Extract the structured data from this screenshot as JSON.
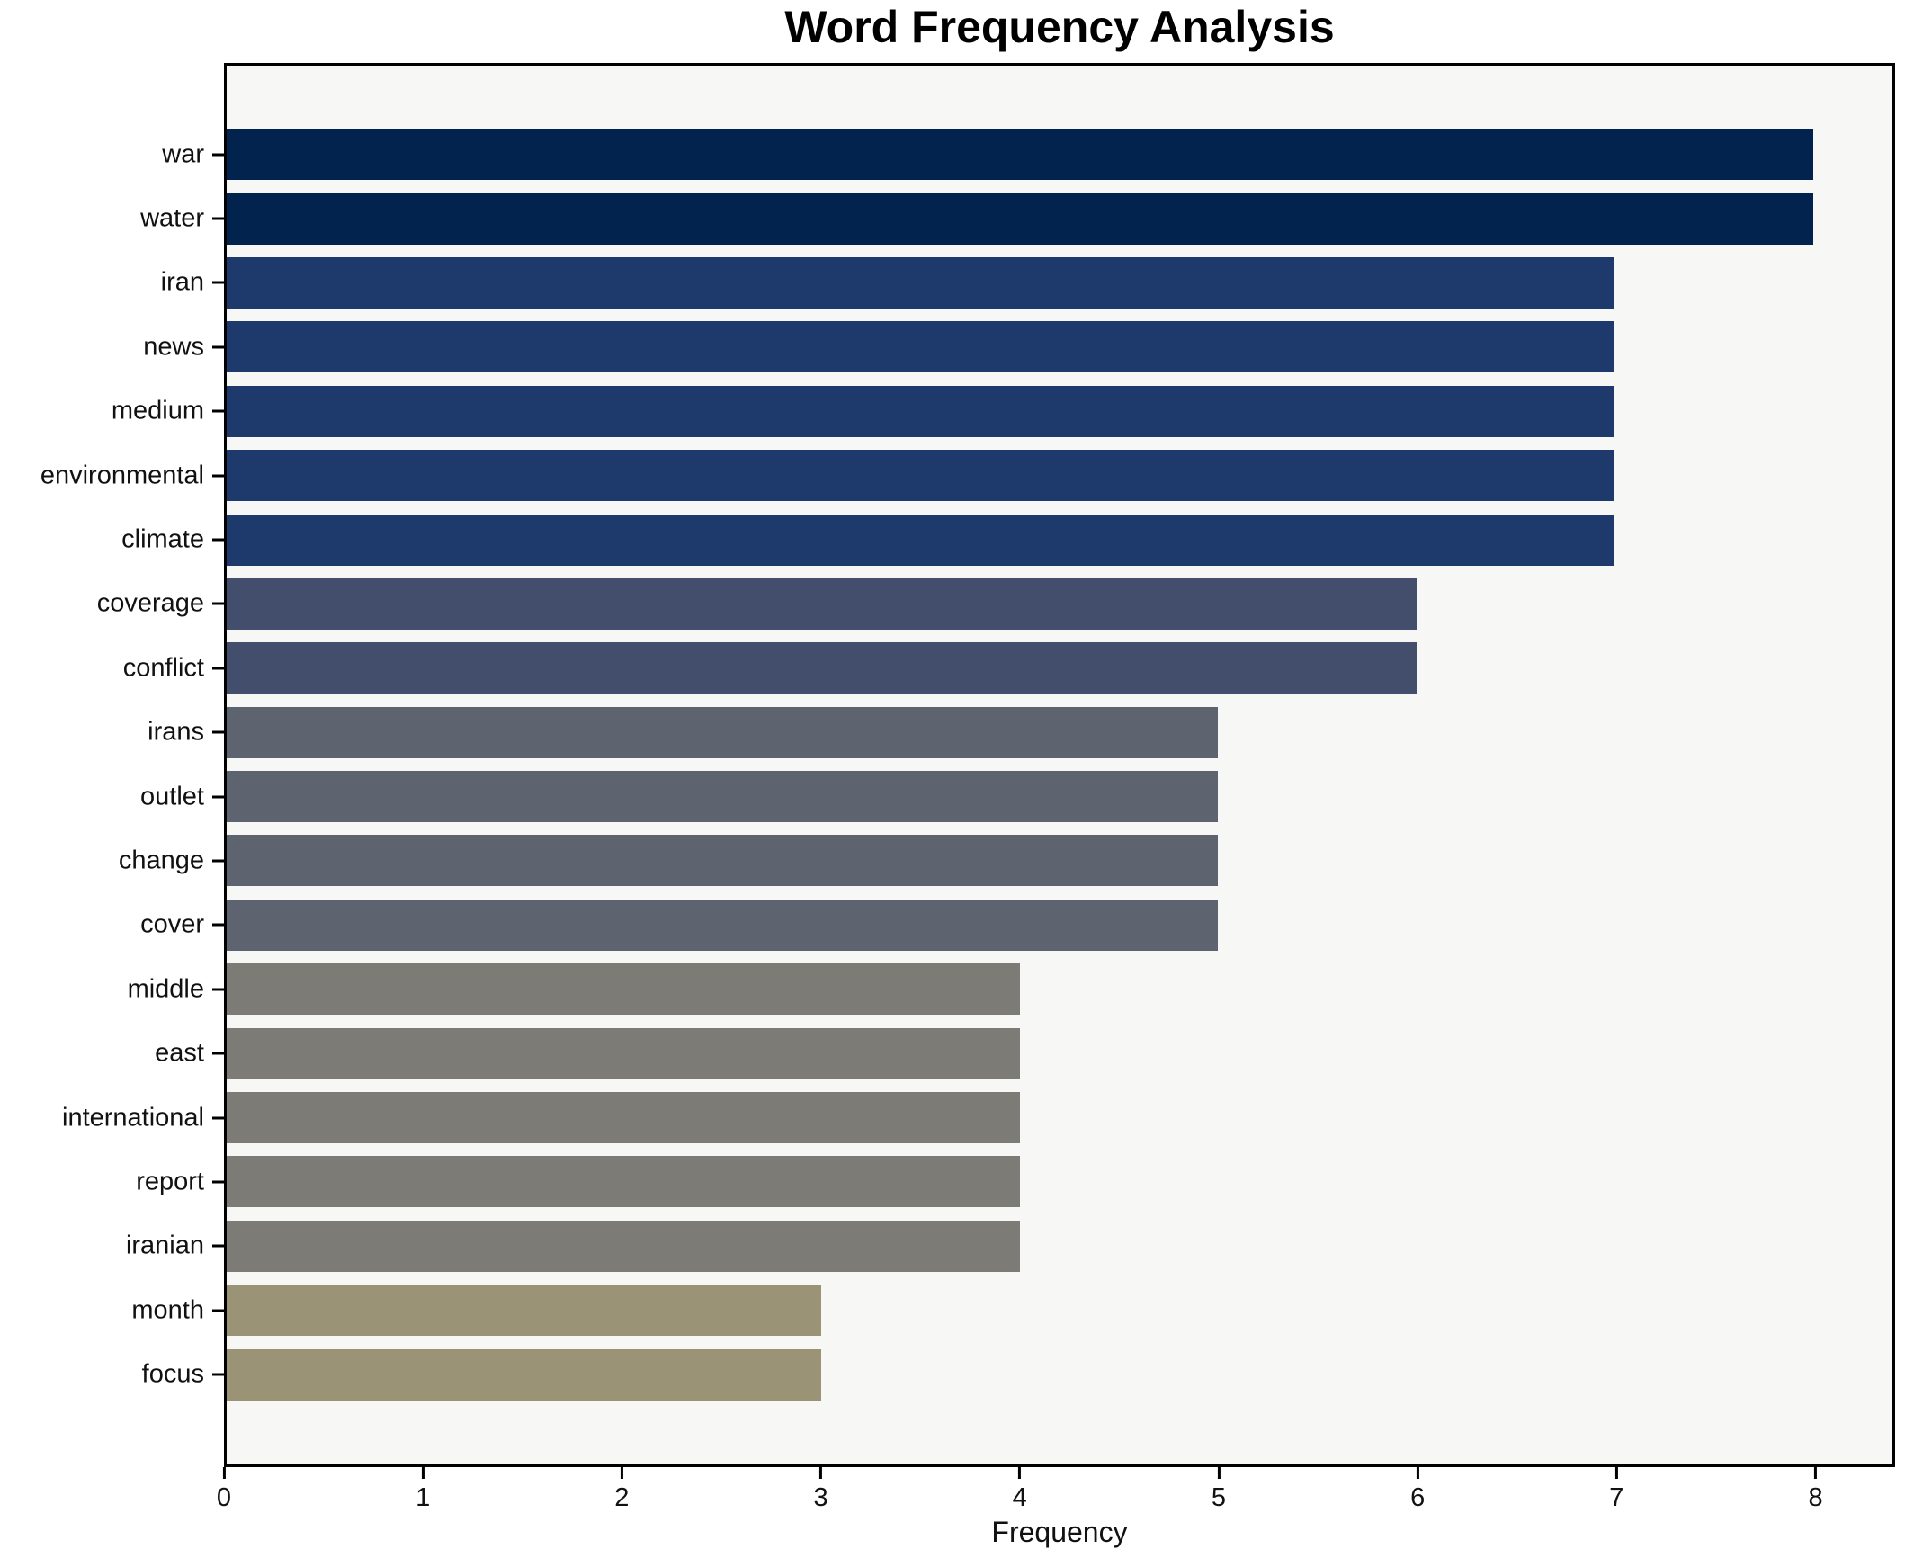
{
  "chart_data": {
    "type": "bar",
    "orientation": "horizontal",
    "title": "Word Frequency Analysis",
    "xlabel": "Frequency",
    "ylabel": "",
    "categories": [
      "war",
      "water",
      "iran",
      "news",
      "medium",
      "environmental",
      "climate",
      "coverage",
      "conflict",
      "irans",
      "outlet",
      "change",
      "cover",
      "middle",
      "east",
      "international",
      "report",
      "iranian",
      "month",
      "focus"
    ],
    "values": [
      8,
      8,
      7,
      7,
      7,
      7,
      7,
      6,
      6,
      5,
      5,
      5,
      5,
      4,
      4,
      4,
      4,
      4,
      3,
      3
    ],
    "bar_colors": [
      "#02234e",
      "#02234e",
      "#1e3a6c",
      "#1e3a6c",
      "#1e3a6c",
      "#1e3a6c",
      "#1e3a6c",
      "#424e6b",
      "#424e6b",
      "#5e6370",
      "#5e6370",
      "#5e6370",
      "#5e6370",
      "#7c7b75",
      "#7c7b75",
      "#7c7b75",
      "#7c7b75",
      "#7c7b75",
      "#9a9375",
      "#9a9375"
    ],
    "xlim": [
      0,
      8.4
    ],
    "xticks": [
      0,
      1,
      2,
      3,
      4,
      5,
      6,
      7,
      8
    ],
    "grid": false,
    "legend": "none",
    "plot_background": "#f7f7f6",
    "figure_background": "#ffffff",
    "spine_color": "#000000"
  }
}
